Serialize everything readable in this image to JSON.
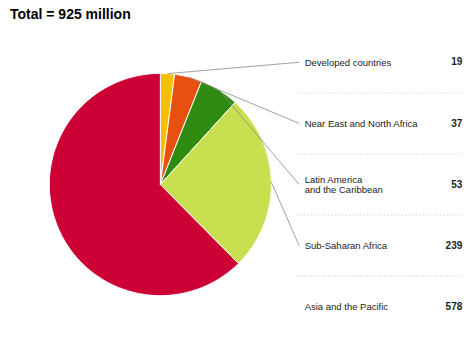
{
  "chart_data": {
    "type": "pie",
    "title": "Total = 925 million",
    "categories": [
      "Developed countries",
      "Near East and North Africa",
      "Latin America\nand the Caribbean",
      "Sub-Saharan Africa",
      "Asia and the Pacific"
    ],
    "values": [
      19,
      37,
      53,
      239,
      578
    ],
    "colors": [
      "#F5C000",
      "#E85010",
      "#2E8B10",
      "#C8E050",
      "#CC0035"
    ],
    "data_labels": true
  }
}
